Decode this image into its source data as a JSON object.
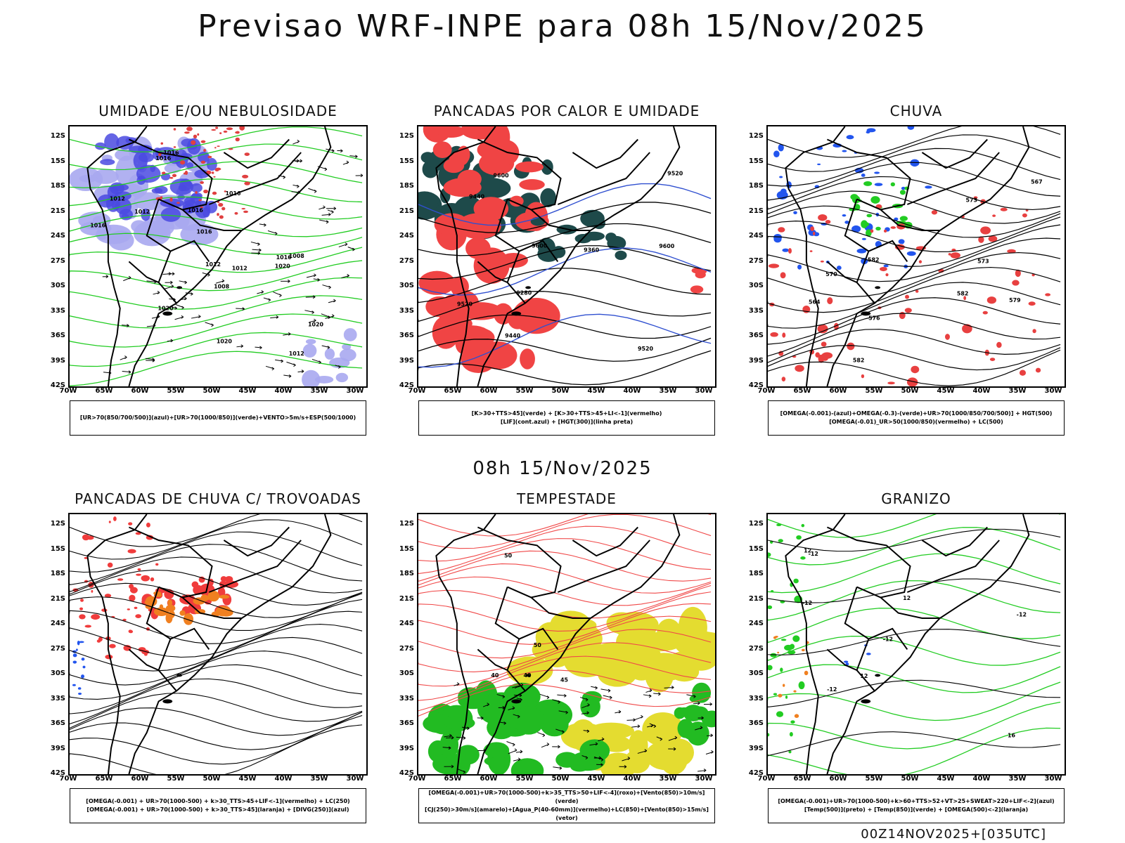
{
  "header": {
    "title": "Previsao WRF-INPE  para 08h 15/Nov/2025"
  },
  "middle_title": "08h 15/Nov/2025",
  "footer": "00Z14NOV2025+[035UTC]",
  "axes": {
    "lat_labels": [
      "12S",
      "15S",
      "18S",
      "21S",
      "24S",
      "27S",
      "30S",
      "33S",
      "36S",
      "39S",
      "42S"
    ],
    "lon_labels": [
      "70W",
      "65W",
      "60W",
      "55W",
      "50W",
      "45W",
      "40W",
      "35W",
      "30W"
    ]
  },
  "panels": [
    {
      "id": "umidade",
      "title": "UMIDADE E/OU NEBULOSIDADE",
      "legend": [
        "[UR>70(850/700/500)](azul)+[UR>70(1000/850)](verde)+VENTO>5m/s+ESP(500/1000)"
      ],
      "contour_labels": [
        "1012",
        "1012",
        "1016",
        "1016",
        "1020",
        "1016",
        "1016",
        "1012",
        "1020",
        "1020",
        "1016",
        "1016",
        "1012",
        "1008",
        "1008",
        "1020",
        "1016",
        "1012"
      ],
      "colors": [
        "#4a4ae0",
        "#a8a8f0",
        "#22cc22",
        "#e04040"
      ]
    },
    {
      "id": "pancadas-calor",
      "title": "PANCADAS POR CALOR E UMIDADE",
      "legend": [
        "[K>30+TTS>45](verde) + [K>30+TTS>45+LI<-1](vermelho)",
        "[LIF](cont.azul) + [HGT(300)](linha preta)"
      ],
      "contour_labels": [
        "9600",
        "9600",
        "9600",
        "9520",
        "9520",
        "9440",
        "9360",
        "9440",
        "9280",
        "9520"
      ],
      "colors": [
        "#f04444",
        "#1e4a4a",
        "#3050d0",
        "#000000"
      ]
    },
    {
      "id": "chuva",
      "title": "CHUVA",
      "legend": [
        "[OMEGA(-0.001)-(azul)+OMEGA(-0.3)-(verde)+UR>70(1000/850/700/500)] + HGT(500)",
        "[OMEGA(-0.01)_UR>50(1000/850)(vermelho) + LC(500)"
      ],
      "contour_labels": [
        "582",
        "582",
        "582",
        "576",
        "579",
        "573",
        "570",
        "567",
        "573",
        "564"
      ],
      "colors": [
        "#2255ee",
        "#22cc22",
        "#e84040",
        "#000000"
      ]
    },
    {
      "id": "trovoadas",
      "title": "PANCADAS DE CHUVA C/ TROVOADAS",
      "legend": [
        "[OMEGA(-0.001) + UR>70(1000-500) + k>30_TTS>45+LIF<-1](vermelho) + LC(250)",
        "[OMEGA(-0.001) + UR>70(1000-500) + k>30_TTS>45](laranja) + [DIVG(250)](azul)"
      ],
      "contour_labels": [],
      "colors": [
        "#f03c3c",
        "#f08020",
        "#2255ee",
        "#000000"
      ]
    },
    {
      "id": "tempestade",
      "title": "TEMPESTADE",
      "legend": [
        "[OMEGA(-0.001)+UR>70(1000-500)+k>35_TTS>50+LIF<-4](roxo)+[Vento(850)>10m/s](verde)",
        "[CJ(250)>30m/s](amarelo)+[Agua_P(40-60mm)](vermelho)+LC(850)+[Vento(850)>15m/s](vetor)"
      ],
      "contour_labels": [
        "40",
        "50",
        "40",
        "50",
        "45"
      ],
      "colors": [
        "#22bb22",
        "#e4dc30",
        "#f04848",
        "#000000"
      ]
    },
    {
      "id": "granizo",
      "title": "GRANIZO",
      "legend": [
        "[OMEGA(-0.001)+UR>70(1000-500)+k>60+TTS>52+VT>25+SWEAT>220+LIF<-2](azul)",
        "[Temp(500)](preto) + [Temp(850)](verde) + [OMEGA(500)<-2](laranja)"
      ],
      "contour_labels": [
        "-12",
        "-12",
        "-12",
        "-12",
        "12",
        "12",
        "16",
        "12",
        "-12"
      ],
      "colors": [
        "#22cc22",
        "#000000",
        "#f08020",
        "#2255ee"
      ]
    }
  ]
}
